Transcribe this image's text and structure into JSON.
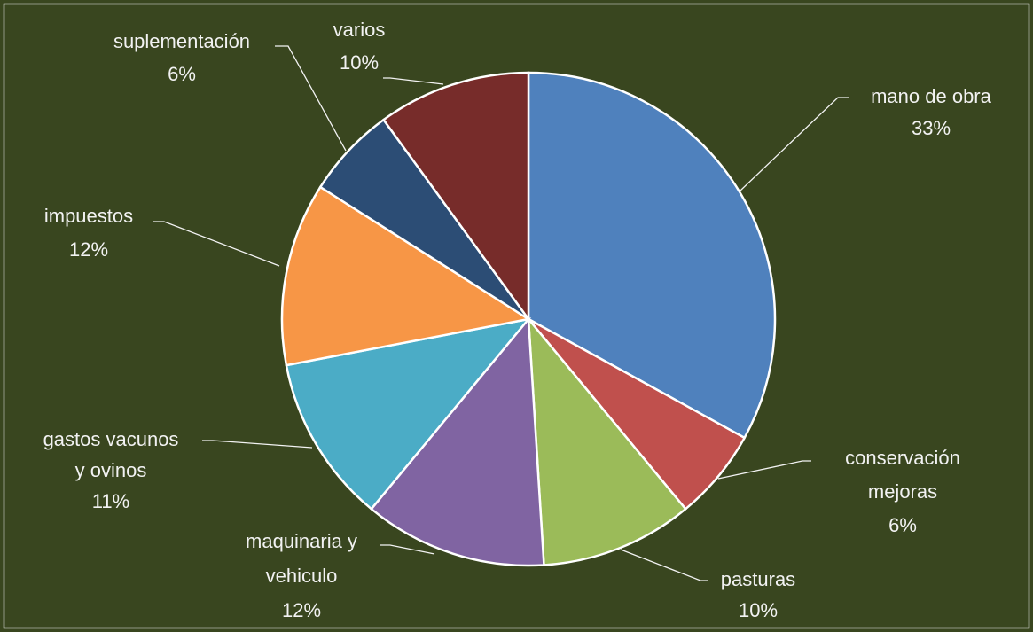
{
  "chart_data": {
    "type": "pie",
    "categories": [
      [
        "mano de obra"
      ],
      [
        "conservación",
        "mejoras"
      ],
      [
        "pasturas"
      ],
      [
        "maquinaria y",
        "vehiculo"
      ],
      [
        "gastos vacunos",
        "y ovinos"
      ],
      [
        "impuestos"
      ],
      [
        "suplementación"
      ],
      [
        "varios"
      ]
    ],
    "values": [
      33,
      6,
      10,
      12,
      11,
      12,
      6,
      10
    ],
    "value_labels": [
      "33%",
      "6%",
      "10%",
      "12%",
      "11%",
      "12%",
      "6%",
      "10%"
    ],
    "colors": [
      "#4f81bd",
      "#c0504d",
      "#9bbb59",
      "#8064a2",
      "#4bacc6",
      "#f79646",
      "#2c4d75",
      "#772c2a"
    ]
  }
}
